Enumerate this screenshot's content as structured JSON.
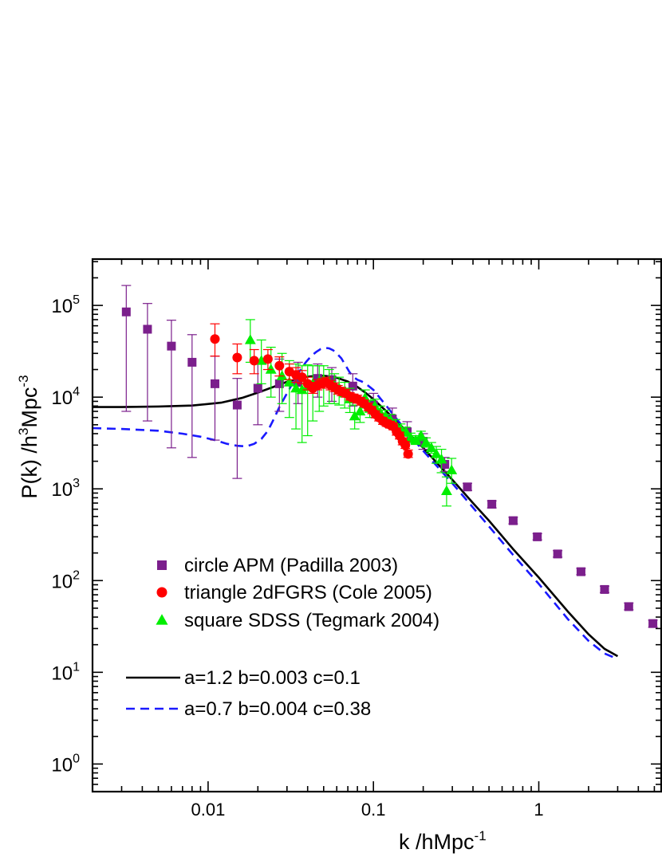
{
  "chart_data": {
    "type": "scatter",
    "x_scale": "log",
    "y_scale": "log",
    "xlim": [
      0.002,
      5.5
    ],
    "ylim": [
      0.5,
      320000
    ],
    "xlabel": "k /hMpc",
    "xlabel_sup": "-1",
    "ylabel_parts": [
      "P(k) /h",
      "3",
      "Mpc",
      "-3"
    ],
    "x_ticks": [
      {
        "value": 0.01,
        "label": "0.01"
      },
      {
        "value": 0.1,
        "label": "0.1"
      },
      {
        "value": 1,
        "label": "1"
      }
    ],
    "y_ticks": [
      {
        "value": 1,
        "base": "10",
        "exp": "0"
      },
      {
        "value": 10,
        "base": "10",
        "exp": "1"
      },
      {
        "value": 100,
        "base": "10",
        "exp": "2"
      },
      {
        "value": 1000,
        "base": "10",
        "exp": "3"
      },
      {
        "value": 10000,
        "base": "10",
        "exp": "4"
      },
      {
        "value": 100000,
        "base": "10",
        "exp": "5"
      }
    ],
    "grid": false,
    "legend_position": "bottom-left",
    "series": [
      {
        "name": "circle  APM (Padilla 2003)",
        "marker": "square",
        "color": "#7b1f8c",
        "x": [
          0.0032,
          0.0043,
          0.006,
          0.008,
          0.011,
          0.015,
          0.02,
          0.027,
          0.035,
          0.046,
          0.056,
          0.075,
          0.1,
          0.13,
          0.16,
          0.2,
          0.27,
          0.37,
          0.52,
          0.7,
          0.98,
          1.3,
          1.8,
          2.5,
          3.5,
          4.9
        ],
        "y": [
          85000,
          55000,
          36000,
          24000,
          14000,
          8200,
          12500,
          14000,
          14500,
          16000,
          15500,
          13200,
          8200,
          5800,
          4200,
          3300,
          1850,
          1050,
          680,
          450,
          300,
          195,
          125,
          80,
          52,
          34
        ],
        "err_low": [
          7000,
          5500,
          2800,
          2200,
          3400,
          1300,
          5000,
          7000,
          8500,
          10000,
          9000,
          8000,
          6000,
          4600,
          3400,
          2700,
          1550,
          960,
          620,
          415,
          278,
          180,
          116,
          74,
          48,
          31
        ],
        "err_high": [
          165000,
          105000,
          69000,
          48000,
          28000,
          16000,
          24000,
          26000,
          24000,
          23000,
          21000,
          18000,
          11000,
          7600,
          5400,
          4000,
          2200,
          1150,
          740,
          490,
          325,
          212,
          136,
          87,
          57,
          37
        ]
      },
      {
        "name": "triangle  2dFGRS (Cole 2005)",
        "marker": "circle",
        "color": "#ff0000",
        "x": [
          0.011,
          0.015,
          0.019,
          0.023,
          0.027,
          0.031,
          0.034,
          0.037,
          0.04,
          0.043,
          0.046,
          0.049,
          0.052,
          0.055,
          0.058,
          0.061,
          0.064,
          0.068,
          0.072,
          0.076,
          0.08,
          0.084,
          0.088,
          0.093,
          0.098,
          0.103,
          0.108,
          0.114,
          0.12,
          0.126,
          0.132,
          0.138,
          0.144,
          0.15,
          0.156,
          0.162
        ],
        "y": [
          43000,
          27000,
          25000,
          26000,
          22000,
          19000,
          17500,
          16500,
          14000,
          12500,
          13500,
          14000,
          14500,
          13500,
          12800,
          12000,
          11500,
          11000,
          10200,
          9800,
          9500,
          9000,
          8500,
          7800,
          7200,
          6500,
          6000,
          5500,
          5200,
          5000,
          4800,
          4200,
          3800,
          3300,
          3000,
          2400
        ],
        "err_low": [
          28000,
          18000,
          18000,
          20000,
          17000,
          15500,
          14500,
          14000,
          12000,
          11000,
          12000,
          12500,
          13000,
          12000,
          11500,
          10800,
          10400,
          10000,
          9300,
          8900,
          8600,
          8200,
          7800,
          7100,
          6600,
          5950,
          5500,
          5050,
          4800,
          4600,
          4400,
          3850,
          3500,
          3020,
          2760,
          2200
        ],
        "err_high": [
          63000,
          38000,
          33000,
          33000,
          27500,
          23000,
          21000,
          19500,
          16500,
          14500,
          15500,
          16000,
          16500,
          15200,
          14300,
          13400,
          12800,
          12200,
          11200,
          10800,
          10500,
          9900,
          9300,
          8600,
          7900,
          7100,
          6550,
          6000,
          5650,
          5450,
          5250,
          4600,
          4150,
          3600,
          3280,
          2650
        ]
      },
      {
        "name": "square SDSS (Tegmark 2004)",
        "marker": "triangle",
        "color": "#00ee00",
        "x": [
          0.018,
          0.021,
          0.024,
          0.028,
          0.031,
          0.034,
          0.037,
          0.04,
          0.043,
          0.047,
          0.05,
          0.054,
          0.058,
          0.062,
          0.067,
          0.072,
          0.077,
          0.083,
          0.089,
          0.095,
          0.102,
          0.11,
          0.118,
          0.127,
          0.136,
          0.146,
          0.157,
          0.168,
          0.18,
          0.194,
          0.208,
          0.224,
          0.24,
          0.258,
          0.277,
          0.297
        ],
        "y": [
          42000,
          25000,
          20000,
          17000,
          14500,
          12500,
          12000,
          13000,
          14000,
          15000,
          15500,
          14500,
          13500,
          12500,
          11000,
          9500,
          6200,
          7000,
          9800,
          7500,
          8000,
          6800,
          6200,
          5600,
          5000,
          4500,
          4200,
          3600,
          3400,
          3800,
          3200,
          2800,
          2400,
          2100,
          950,
          1600
        ],
        "err_low": [
          24000,
          14000,
          10000,
          8500,
          6000,
          4500,
          3200,
          3800,
          5500,
          7000,
          8000,
          8500,
          8500,
          8200,
          7600,
          6800,
          4500,
          5300,
          7600,
          6000,
          6600,
          5700,
          5300,
          4800,
          4400,
          3950,
          3750,
          3200,
          3050,
          3350,
          2850,
          2450,
          1900,
          1500,
          650,
          1150
        ],
        "err_high": [
          70000,
          42000,
          35000,
          30000,
          25000,
          23000,
          22000,
          22500,
          22000,
          22000,
          22000,
          20000,
          18000,
          16500,
          14500,
          12500,
          8200,
          8900,
          12000,
          9200,
          9500,
          8000,
          7200,
          6500,
          5700,
          5100,
          4700,
          4050,
          3800,
          4250,
          3600,
          3200,
          2900,
          2700,
          1350,
          2150
        ]
      },
      {
        "name": "a=1.2  b=0.003  c=0.1",
        "type": "line",
        "style": "solid",
        "color": "#000000",
        "x": [
          0.002,
          0.003,
          0.005,
          0.008,
          0.012,
          0.016,
          0.02,
          0.025,
          0.03,
          0.035,
          0.04,
          0.045,
          0.05,
          0.055,
          0.06,
          0.07,
          0.08,
          0.09,
          0.1,
          0.12,
          0.15,
          0.2,
          0.3,
          0.4,
          0.5,
          0.7,
          1.0,
          1.5,
          2.0,
          2.5,
          3.0
        ],
        "y": [
          7800,
          7800,
          7900,
          8100,
          8700,
          9800,
          11200,
          13000,
          14700,
          15900,
          16700,
          17100,
          17100,
          16800,
          16300,
          14800,
          12900,
          11100,
          9500,
          7000,
          4700,
          2800,
          1260,
          700,
          450,
          220,
          108,
          46,
          26,
          18,
          15
        ]
      },
      {
        "name": "a=0.7  b=0.004  c=0.38",
        "type": "line",
        "style": "dashed",
        "color": "#1a1aff",
        "x": [
          0.002,
          0.003,
          0.005,
          0.007,
          0.009,
          0.011,
          0.013,
          0.015,
          0.017,
          0.019,
          0.021,
          0.023,
          0.025,
          0.027,
          0.03,
          0.033,
          0.036,
          0.039,
          0.042,
          0.045,
          0.048,
          0.051,
          0.054,
          0.057,
          0.06,
          0.064,
          0.068,
          0.072,
          0.076,
          0.08,
          0.085,
          0.09,
          0.1,
          0.12,
          0.15,
          0.2,
          0.3,
          0.5,
          0.7,
          1.0,
          1.5,
          2.0,
          2.5,
          3.0
        ],
        "y": [
          4600,
          4500,
          4300,
          4000,
          3700,
          3400,
          3100,
          2950,
          2900,
          3100,
          3500,
          4300,
          5800,
          7800,
          11000,
          15000,
          19500,
          24000,
          28000,
          31000,
          33500,
          34500,
          34000,
          32500,
          30000,
          26500,
          22000,
          18500,
          16500,
          15500,
          14800,
          14000,
          12000,
          8000,
          4800,
          2600,
          1150,
          390,
          190,
          92,
          38,
          22,
          16,
          14
        ]
      }
    ]
  }
}
